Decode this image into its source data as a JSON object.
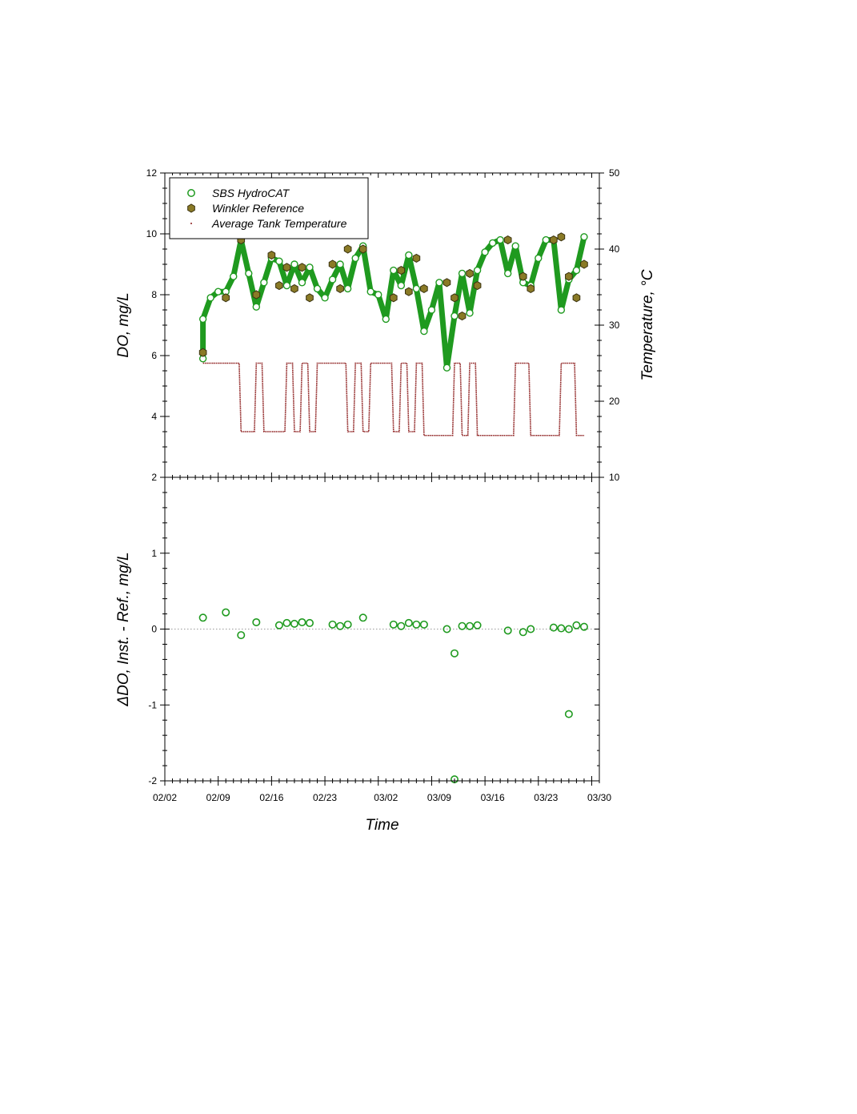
{
  "chart_data": [
    {
      "type": "scatter",
      "panel": "top",
      "xlabel": "",
      "ylabel": "DO, mg/L",
      "y2label": "Temperature, °C",
      "x_start_date": "2024-02-02",
      "ylim": [
        2,
        12
      ],
      "y2lim": [
        10,
        50
      ],
      "yticks": [
        2,
        4,
        6,
        8,
        10,
        12
      ],
      "y2ticks": [
        10,
        20,
        30,
        40,
        50
      ],
      "legend_position": "top-left",
      "legend": [
        {
          "label": "SBS HydroCAT",
          "marker": "open-circle",
          "color": "#1f9a1f"
        },
        {
          "label": "Winkler Reference",
          "marker": "filled-hexagon",
          "color": "#8a7a26"
        },
        {
          "label": "Average Tank Temperature",
          "marker": "dot",
          "color": "#8b1a1a"
        }
      ],
      "series": [
        {
          "name": "SBS HydroCAT",
          "axis": "left",
          "x": [
            "02/07",
            "02/07",
            "02/08",
            "02/09",
            "02/10",
            "02/11",
            "02/12",
            "02/13",
            "02/14",
            "02/15",
            "02/16",
            "02/17",
            "02/18",
            "02/19",
            "02/20",
            "02/21",
            "02/22",
            "02/23",
            "02/24",
            "02/25",
            "02/26",
            "02/27",
            "02/28",
            "02/29",
            "03/01",
            "03/02",
            "03/03",
            "03/04",
            "03/05",
            "03/06",
            "03/07",
            "03/08",
            "03/09",
            "03/10",
            "03/11",
            "03/12",
            "03/13",
            "03/14",
            "03/15",
            "03/16",
            "03/17",
            "03/18",
            "03/19",
            "03/20",
            "03/21",
            "03/22",
            "03/23",
            "03/24",
            "03/25",
            "03/26",
            "03/27",
            "03/28"
          ],
          "y": [
            5.9,
            7.2,
            7.9,
            8.1,
            8.1,
            8.6,
            9.8,
            8.7,
            7.6,
            8.4,
            9.2,
            9.1,
            8.3,
            9.0,
            8.4,
            8.9,
            8.2,
            7.9,
            8.5,
            9.0,
            8.2,
            9.2,
            9.6,
            8.1,
            8.0,
            7.2,
            8.8,
            8.3,
            9.3,
            8.2,
            6.8,
            7.5,
            8.4,
            5.6,
            7.3,
            8.7,
            7.4,
            8.8,
            9.4,
            9.7,
            9.8,
            8.7,
            9.6,
            8.4,
            8.3,
            9.2,
            9.8,
            9.8,
            7.5,
            8.5,
            8.8,
            9.9
          ]
        },
        {
          "name": "Winkler Reference",
          "axis": "left",
          "x": [
            "02/07",
            "02/10",
            "02/12",
            "02/14",
            "02/16",
            "02/17",
            "02/18",
            "02/19",
            "02/20",
            "02/21",
            "02/24",
            "02/25",
            "02/26",
            "02/28",
            "03/03",
            "03/04",
            "03/05",
            "03/06",
            "03/07",
            "03/10",
            "03/11",
            "03/12",
            "03/13",
            "03/14",
            "03/18",
            "03/20",
            "03/21",
            "03/24",
            "03/25",
            "03/26",
            "03/27",
            "03/28"
          ],
          "y": [
            6.1,
            7.9,
            9.8,
            8.0,
            9.3,
            8.3,
            8.9,
            8.2,
            8.9,
            7.9,
            9.0,
            8.2,
            9.5,
            9.5,
            7.9,
            8.8,
            8.1,
            9.2,
            8.2,
            8.4,
            7.9,
            7.3,
            8.7,
            8.3,
            9.8,
            8.6,
            8.2,
            9.8,
            9.9,
            8.6,
            7.9,
            9.0
          ]
        },
        {
          "name": "Average Tank Temperature",
          "axis": "right",
          "x": [
            "02/07",
            "02/11",
            "02/12",
            "02/13",
            "02/14",
            "02/15",
            "02/16",
            "02/17",
            "02/18",
            "02/19",
            "02/20",
            "02/21",
            "02/22",
            "02/23",
            "02/24",
            "02/25",
            "02/26",
            "02/27",
            "02/28",
            "02/29",
            "03/01",
            "03/02",
            "03/03",
            "03/04",
            "03/05",
            "03/06",
            "03/07",
            "03/08",
            "03/09",
            "03/10",
            "03/11",
            "03/12",
            "03/13",
            "03/14",
            "03/15",
            "03/16",
            "03/17",
            "03/18",
            "03/19",
            "03/20",
            "03/21",
            "03/22",
            "03/23",
            "03/24",
            "03/25",
            "03/26",
            "03/27",
            "03/28"
          ],
          "y": [
            25,
            25,
            16,
            16,
            25,
            16,
            16,
            16,
            25,
            16,
            25,
            16,
            25,
            25,
            25,
            25,
            16,
            25,
            16,
            25,
            25,
            25,
            16,
            25,
            16,
            25,
            15.5,
            15.5,
            15.5,
            15.5,
            25,
            15.5,
            25,
            15.5,
            15.5,
            15.5,
            15.5,
            15.5,
            25,
            25,
            15.5,
            15.5,
            15.5,
            15.5,
            25,
            25,
            15.5,
            15.5
          ]
        }
      ]
    },
    {
      "type": "scatter",
      "panel": "bottom",
      "xlabel": "Time",
      "ylabel": "ΔDO, Inst. - Ref., mg/L",
      "ylim": [
        -2,
        2
      ],
      "yticks": [
        -2,
        -1,
        0,
        1
      ],
      "xticks": [
        "02/02",
        "02/09",
        "02/16",
        "02/23",
        "03/02",
        "03/09",
        "03/16",
        "03/23",
        "03/30"
      ],
      "reference_line_y": 0,
      "series": [
        {
          "name": "SBS HydroCAT",
          "x": [
            "02/07",
            "02/10",
            "02/12",
            "02/14",
            "02/17",
            "02/18",
            "02/19",
            "02/20",
            "02/21",
            "02/24",
            "02/25",
            "02/26",
            "02/28",
            "03/03",
            "03/04",
            "03/05",
            "03/06",
            "03/07",
            "03/10",
            "03/11",
            "03/11",
            "03/12",
            "03/13",
            "03/14",
            "03/18",
            "03/20",
            "03/21",
            "03/24",
            "03/25",
            "03/26",
            "03/26",
            "03/27",
            "03/28"
          ],
          "y": [
            0.15,
            0.22,
            -0.08,
            0.09,
            0.05,
            0.08,
            0.07,
            0.09,
            0.08,
            0.06,
            0.04,
            0.06,
            0.15,
            0.06,
            0.04,
            0.08,
            0.06,
            0.06,
            0.0,
            -0.32,
            -1.98,
            0.04,
            0.04,
            0.05,
            -0.02,
            -0.04,
            0.0,
            0.02,
            0.01,
            -1.12,
            0.0,
            0.05,
            0.03
          ]
        }
      ]
    }
  ]
}
